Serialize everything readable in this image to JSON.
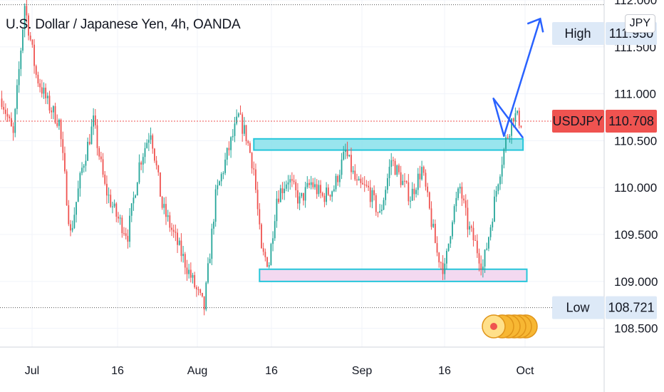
{
  "header": {
    "title": "U.S. Dollar / Japanese Yen, 4h, OANDA",
    "currency": "JPY"
  },
  "chart_data": {
    "type": "candlestick",
    "symbol": "USDJPY",
    "ylim": [
      108.3,
      112.0
    ],
    "y_ticks": [
      "112.000",
      "111.500",
      "111.000",
      "110.500",
      "110.000",
      "109.500",
      "109.000",
      "108.500"
    ],
    "x_ticks": [
      "Jul",
      "16",
      "Aug",
      "16",
      "Sep",
      "16",
      "Oct"
    ],
    "last_price": {
      "label": "USDJPY",
      "value": "110.708"
    },
    "high_marker": {
      "label": "High",
      "value": "111.950"
    },
    "low_marker": {
      "label": "Low",
      "value": "108.721"
    },
    "resistance_zone": [
      110.4,
      110.52
    ],
    "support_zone": [
      109.0,
      109.13
    ],
    "projection_path": [
      110.53,
      110.95,
      110.55,
      111.8
    ],
    "colors": {
      "up": "#26a69a",
      "down": "#ef5350",
      "resistance_fill": "#80deea",
      "resistance_stroke": "#26c6da",
      "support_fill": "#f3d9f0",
      "support_stroke": "#26c6da",
      "projection": "#2962ff",
      "price_line": "#ef5350",
      "badge_bg": "#dde9f7"
    },
    "anchors": [
      [
        0,
        110.95
      ],
      [
        6,
        110.55
      ],
      [
        12,
        111.95
      ],
      [
        18,
        111.2
      ],
      [
        24,
        110.9
      ],
      [
        30,
        110.7
      ],
      [
        36,
        109.5
      ],
      [
        42,
        110.2
      ],
      [
        48,
        110.7
      ],
      [
        54,
        110.0
      ],
      [
        60,
        109.7
      ],
      [
        66,
        109.5
      ],
      [
        72,
        110.25
      ],
      [
        78,
        110.62
      ],
      [
        84,
        109.8
      ],
      [
        90,
        109.5
      ],
      [
        96,
        109.2
      ],
      [
        102,
        108.9
      ],
      [
        106,
        108.72
      ],
      [
        112,
        109.9
      ],
      [
        118,
        110.35
      ],
      [
        124,
        110.75
      ],
      [
        128,
        110.55
      ],
      [
        132,
        110.2
      ],
      [
        136,
        109.3
      ],
      [
        140,
        109.2
      ],
      [
        144,
        109.9
      ],
      [
        150,
        110.1
      ],
      [
        156,
        109.85
      ],
      [
        162,
        110.05
      ],
      [
        168,
        109.9
      ],
      [
        174,
        110.0
      ],
      [
        180,
        110.38
      ],
      [
        186,
        110.02
      ],
      [
        192,
        109.98
      ],
      [
        198,
        109.7
      ],
      [
        204,
        110.3
      ],
      [
        210,
        110.05
      ],
      [
        214,
        109.9
      ],
      [
        220,
        110.2
      ],
      [
        224,
        109.75
      ],
      [
        228,
        109.3
      ],
      [
        232,
        109.12
      ],
      [
        236,
        109.7
      ],
      [
        240,
        110.0
      ],
      [
        244,
        109.6
      ],
      [
        248,
        109.4
      ],
      [
        252,
        109.15
      ],
      [
        256,
        109.6
      ],
      [
        260,
        110.1
      ],
      [
        264,
        110.5
      ],
      [
        268,
        110.78
      ],
      [
        272,
        110.7
      ]
    ]
  }
}
